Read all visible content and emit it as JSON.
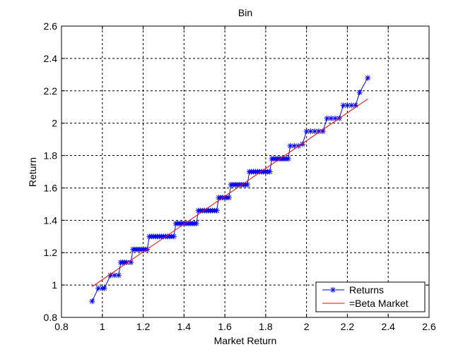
{
  "chart_data": {
    "type": "line",
    "title": "Bin",
    "xlabel": "Market Return",
    "ylabel": "Return",
    "xlim": [
      0.8,
      2.6
    ],
    "ylim": [
      0.8,
      2.6
    ],
    "xticks": [
      0.8,
      1,
      1.2,
      1.4,
      1.6,
      1.8,
      2,
      2.2,
      2.4,
      2.6
    ],
    "yticks": [
      0.8,
      1,
      1.2,
      1.4,
      1.6,
      1.8,
      2,
      2.2,
      2.4,
      2.6
    ],
    "xtick_labels": [
      "0.8",
      "1",
      "1.2",
      "1.4",
      "1.6",
      "1.8",
      "2",
      "2.2",
      "2.4",
      "2.6"
    ],
    "ytick_labels": [
      "0.8",
      "1",
      "1.2",
      "1.4",
      "1.6",
      "1.8",
      "2",
      "2.2",
      "2.4",
      "2.6"
    ],
    "grid": true,
    "legend_position": "bottom-right",
    "series": [
      {
        "name": "Returns",
        "style": "line-with-star-markers",
        "color": "#0000ff",
        "x": [
          0.95,
          0.98,
          1.0,
          1.01,
          1.04,
          1.06,
          1.08,
          1.09,
          1.1,
          1.11,
          1.12,
          1.14,
          1.15,
          1.16,
          1.17,
          1.18,
          1.19,
          1.2,
          1.21,
          1.22,
          1.23,
          1.24,
          1.25,
          1.26,
          1.27,
          1.28,
          1.29,
          1.3,
          1.31,
          1.32,
          1.33,
          1.34,
          1.35,
          1.36,
          1.37,
          1.38,
          1.39,
          1.4,
          1.41,
          1.42,
          1.43,
          1.44,
          1.45,
          1.46,
          1.47,
          1.48,
          1.49,
          1.5,
          1.51,
          1.52,
          1.53,
          1.54,
          1.55,
          1.56,
          1.57,
          1.58,
          1.59,
          1.6,
          1.61,
          1.62,
          1.63,
          1.64,
          1.65,
          1.66,
          1.67,
          1.68,
          1.69,
          1.7,
          1.71,
          1.72,
          1.73,
          1.74,
          1.75,
          1.76,
          1.77,
          1.78,
          1.79,
          1.8,
          1.81,
          1.82,
          1.83,
          1.84,
          1.85,
          1.86,
          1.87,
          1.88,
          1.89,
          1.9,
          1.91,
          1.92,
          1.94,
          1.96,
          1.98,
          2.0,
          2.02,
          2.04,
          2.06,
          2.08,
          2.1,
          2.12,
          2.14,
          2.16,
          2.18,
          2.2,
          2.22,
          2.24,
          2.26,
          2.3
        ],
        "y": [
          0.9,
          0.98,
          0.98,
          0.98,
          1.06,
          1.06,
          1.06,
          1.14,
          1.14,
          1.14,
          1.14,
          1.14,
          1.22,
          1.22,
          1.22,
          1.22,
          1.22,
          1.22,
          1.22,
          1.22,
          1.3,
          1.3,
          1.3,
          1.3,
          1.3,
          1.3,
          1.3,
          1.3,
          1.3,
          1.3,
          1.3,
          1.3,
          1.3,
          1.38,
          1.38,
          1.38,
          1.38,
          1.38,
          1.38,
          1.38,
          1.38,
          1.38,
          1.38,
          1.38,
          1.46,
          1.46,
          1.46,
          1.46,
          1.46,
          1.46,
          1.46,
          1.46,
          1.46,
          1.46,
          1.54,
          1.54,
          1.54,
          1.54,
          1.54,
          1.54,
          1.62,
          1.62,
          1.62,
          1.62,
          1.62,
          1.62,
          1.62,
          1.62,
          1.62,
          1.7,
          1.7,
          1.7,
          1.7,
          1.7,
          1.7,
          1.7,
          1.7,
          1.7,
          1.7,
          1.7,
          1.78,
          1.78,
          1.78,
          1.78,
          1.78,
          1.78,
          1.78,
          1.78,
          1.78,
          1.86,
          1.86,
          1.86,
          1.87,
          1.95,
          1.95,
          1.95,
          1.95,
          1.95,
          2.03,
          2.03,
          2.03,
          2.03,
          2.11,
          2.11,
          2.11,
          2.11,
          2.19,
          2.28
        ]
      },
      {
        "name": "=Beta Market",
        "style": "line",
        "color": "#ff0000",
        "x": [
          0.95,
          2.3
        ],
        "y": [
          0.99,
          2.15
        ]
      }
    ]
  }
}
